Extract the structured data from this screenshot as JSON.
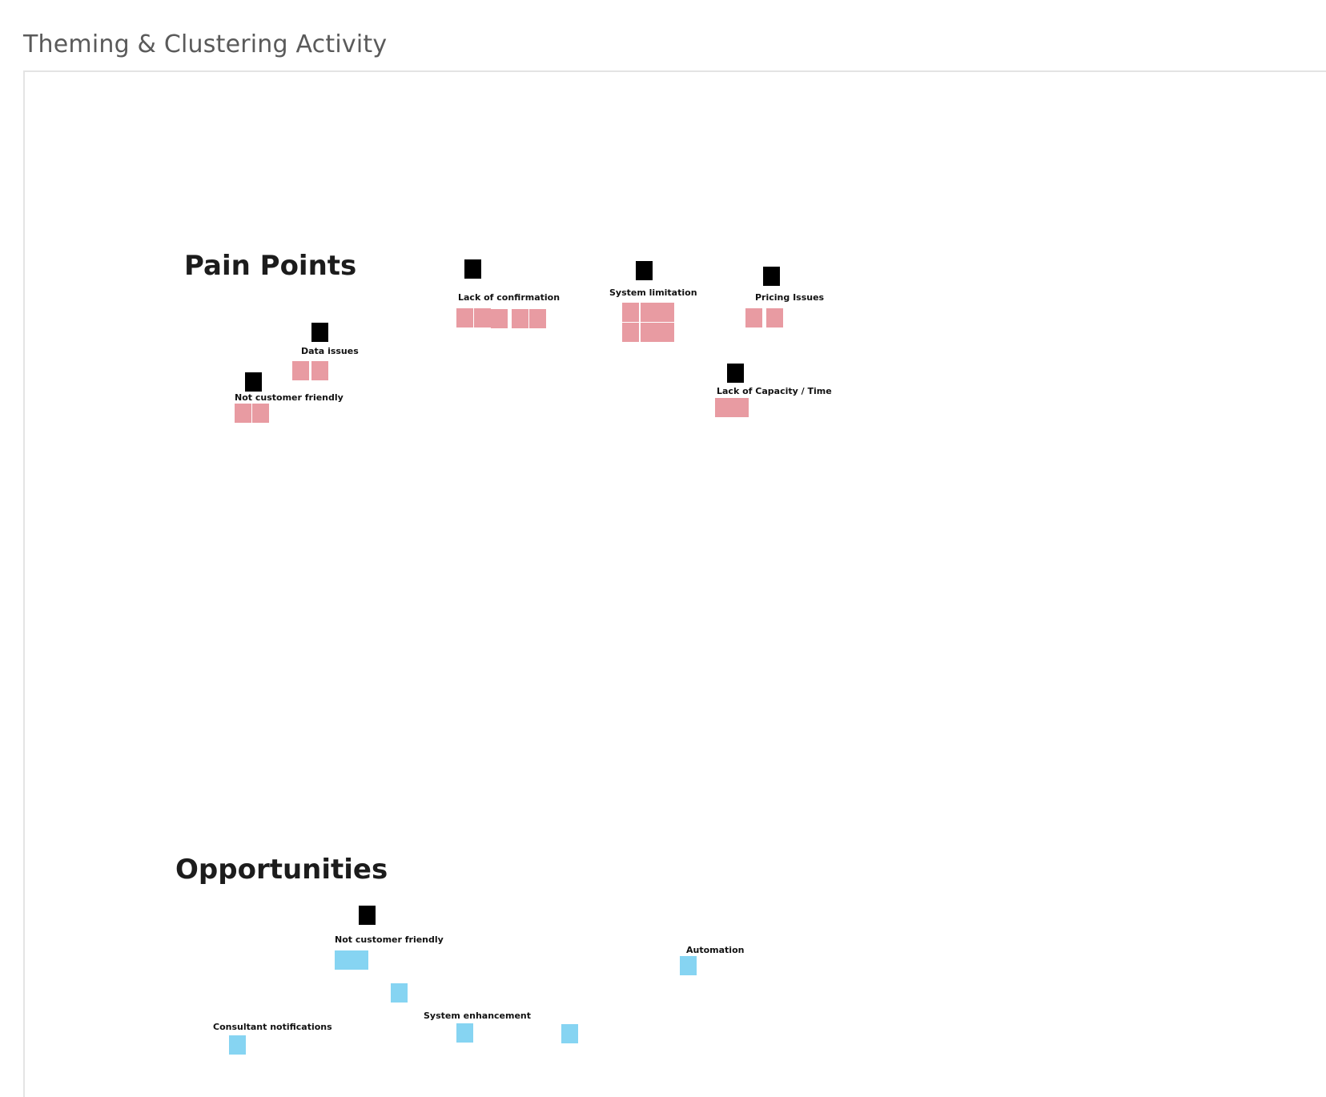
{
  "page": {
    "title": "Theming & Clustering Activity"
  },
  "colors": {
    "pain_sticky": "#e89ba2",
    "opportunity_sticky": "#86d4f2",
    "marker": "#000000"
  },
  "sections": {
    "pain_points": {
      "heading": "Pain Points",
      "clusters": {
        "data_issues": {
          "label": "Data issues",
          "sticky_count": 2
        },
        "not_customer_friendly": {
          "label": "Not customer friendly",
          "sticky_count": 2
        },
        "lack_of_confirmation": {
          "label": "Lack of confirmation",
          "sticky_count": 5
        },
        "system_limitation": {
          "label": "System limitation",
          "sticky_count": 6
        },
        "pricing_issues": {
          "label": "Pricing Issues",
          "sticky_count": 2
        },
        "lack_of_capacity": {
          "label": "Lack of Capacity / Time",
          "sticky_count": 2
        }
      }
    },
    "opportunities": {
      "heading": "Opportunities",
      "clusters": {
        "not_customer_friendly": {
          "label": "Not customer friendly",
          "sticky_count": 3
        },
        "automation": {
          "label": "Automation",
          "sticky_count": 1
        },
        "system_enhancement": {
          "label": "System enhancement",
          "sticky_count": 2
        },
        "consultant_notifications": {
          "label": "Consultant notifications",
          "sticky_count": 1
        }
      }
    }
  }
}
